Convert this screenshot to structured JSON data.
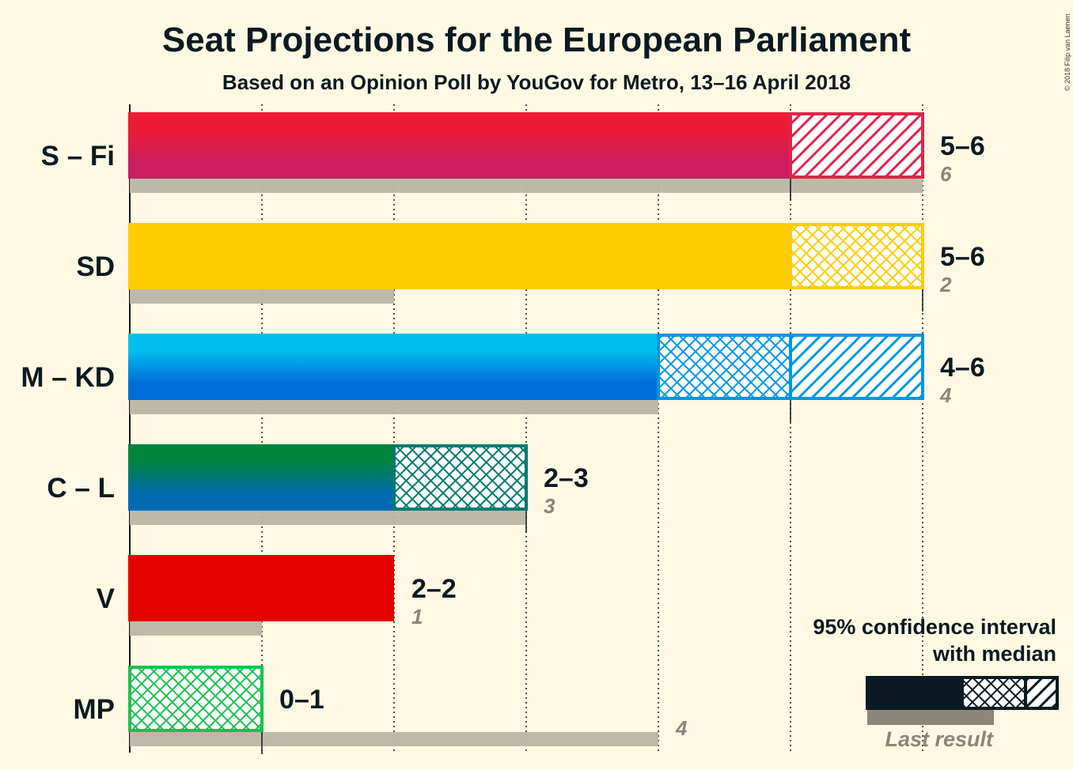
{
  "title": "Seat Projections for the European Parliament",
  "subtitle": "Based on an Opinion Poll by YouGov for Metro, 13–16 April 2018",
  "copyright": "© 2018 Filip van Laenen",
  "legend": {
    "line1": "95% confidence interval",
    "line2": "with median",
    "last_result": "Last result"
  },
  "chart_data": {
    "type": "bar",
    "xlim": [
      0,
      6
    ],
    "grid": true,
    "parties": [
      {
        "name": "S – Fi",
        "low": 5,
        "median": 5,
        "high": 6,
        "range_label": "5–6",
        "last": 6,
        "last_label": "6",
        "colors": [
          "#ED1B34",
          "#CC1D5F"
        ],
        "pattern_color": "#E0244A"
      },
      {
        "name": "SD",
        "low": 5,
        "median": 6,
        "high": 6,
        "range_label": "5–6",
        "last": 2,
        "last_label": "2",
        "colors": [
          "#FFCC00",
          "#FFCC00"
        ],
        "pattern_color": "#FFCC00"
      },
      {
        "name": "M – KD",
        "low": 4,
        "median": 5,
        "high": 6,
        "range_label": "4–6",
        "last": 4,
        "last_label": "4",
        "colors": [
          "#00BFEE",
          "#006CD9"
        ],
        "pattern_color": "#0096E3"
      },
      {
        "name": "C – L",
        "low": 2,
        "median": 3,
        "high": 3,
        "range_label": "2–3",
        "last": 3,
        "last_label": "3",
        "colors": [
          "#00843D",
          "#006AB3"
        ],
        "pattern_color": "#007A70"
      },
      {
        "name": "V",
        "low": 2,
        "median": 2,
        "high": 2,
        "range_label": "2–2",
        "last": 1,
        "last_label": "1",
        "colors": [
          "#E50000",
          "#E50000"
        ],
        "pattern_color": "#E50000"
      },
      {
        "name": "MP",
        "low": 0,
        "median": 1,
        "high": 1,
        "range_label": "0–1",
        "last": 4,
        "last_label": "4",
        "colors": [
          "#1CC050",
          "#1CC050"
        ],
        "pattern_color": "#1CC050"
      }
    ]
  }
}
